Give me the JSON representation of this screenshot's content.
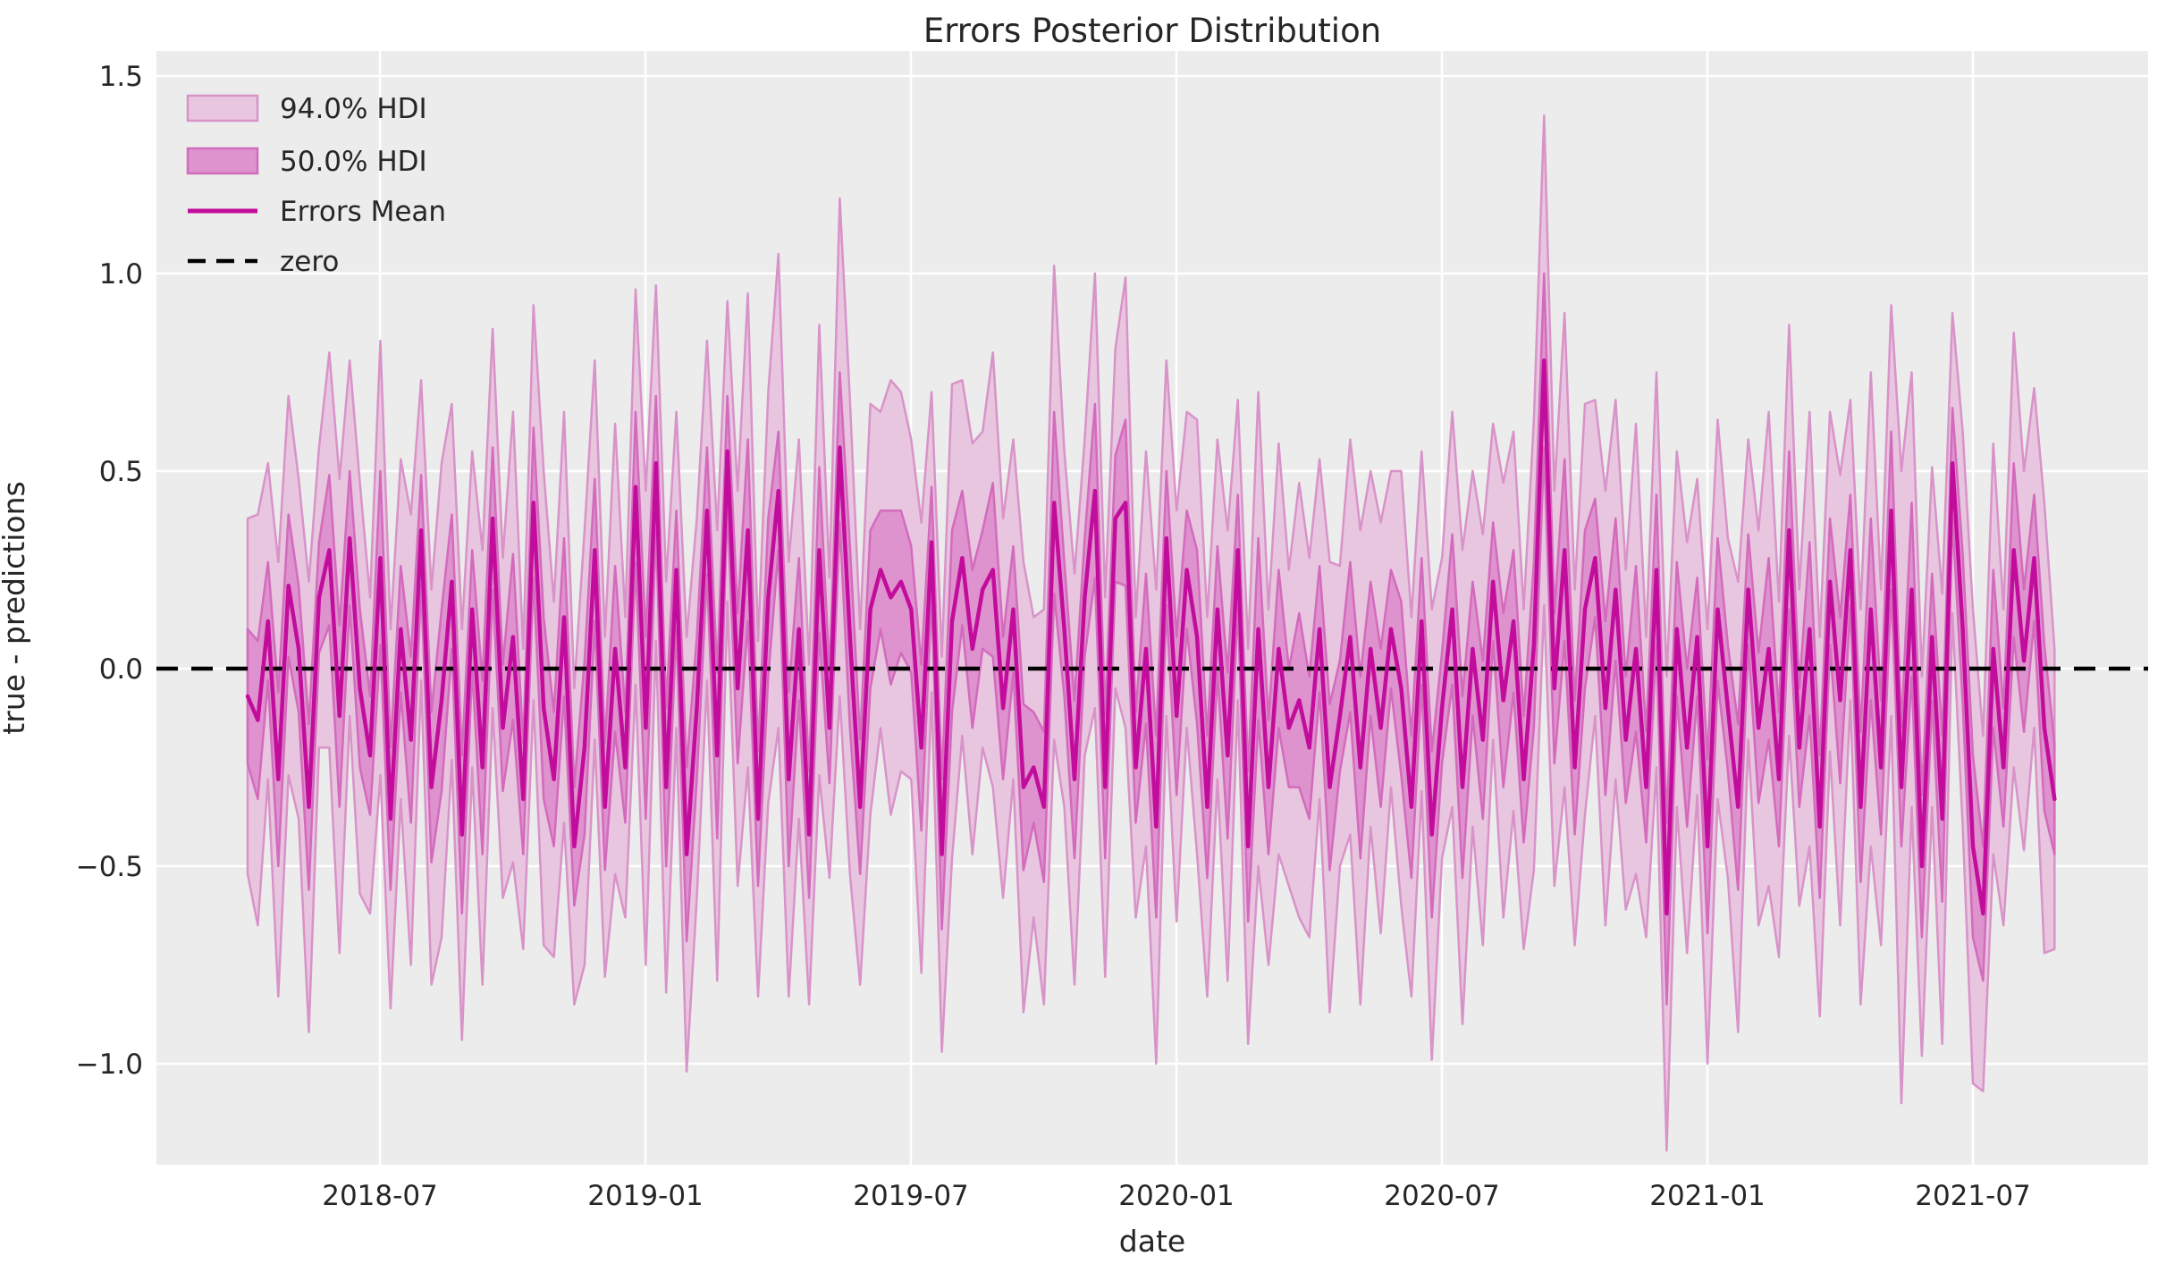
{
  "chart_data": {
    "type": "line",
    "title": "Errors Posterior Distribution",
    "xlabel": "date",
    "ylabel": "true - predictions",
    "grid": true,
    "style": {
      "axes_background": "#ececec",
      "figure_background": "#ffffff",
      "grid_color": "#ffffff",
      "text_color": "#262626",
      "hdi94_fill": "#e9c6e0",
      "hdi94_edge": "#d893c9",
      "hdi50_fill": "#de92ce",
      "hdi50_edge": "#d36bbd",
      "mean_color": "#c20d9c",
      "zero_color": "#000000"
    },
    "ylim": [
      -1.26,
      1.56
    ],
    "y_ticks": [
      {
        "label": "1.5",
        "value": 1.5
      },
      {
        "label": "1.0",
        "value": 1.0
      },
      {
        "label": "0.5",
        "value": 0.5
      },
      {
        "label": "0.0",
        "value": 0.0
      },
      {
        "label": "−0.5",
        "value": -0.5
      },
      {
        "label": "−1.0",
        "value": -1.0
      }
    ],
    "x_ticks": [
      {
        "label": "2018-07",
        "week": 13
      },
      {
        "label": "2019-01",
        "week": 39
      },
      {
        "label": "2019-07",
        "week": 65
      },
      {
        "label": "2020-01",
        "week": 91
      },
      {
        "label": "2020-07",
        "week": 117
      },
      {
        "label": "2021-01",
        "week": 143
      },
      {
        "label": "2021-07",
        "week": 169
      }
    ],
    "x_start": "2018-04-01",
    "x_step_days": 7,
    "n_points": 178,
    "legend": [
      {
        "label": "94.0% HDI",
        "swatch": "patch-light"
      },
      {
        "label": "50.0% HDI",
        "swatch": "patch-dark"
      },
      {
        "label": "Errors Mean",
        "swatch": "line"
      },
      {
        "label": "zero",
        "swatch": "dashed-line"
      }
    ],
    "series": {
      "mean": {
        "name": "Errors Mean",
        "values": [
          -0.07,
          -0.13,
          0.12,
          -0.28,
          0.21,
          0.05,
          -0.35,
          0.18,
          0.3,
          -0.12,
          0.33,
          -0.05,
          -0.22,
          0.28,
          -0.38,
          0.1,
          -0.18,
          0.35,
          -0.3,
          -0.08,
          0.22,
          -0.42,
          0.15,
          -0.25,
          0.38,
          -0.15,
          0.08,
          -0.33,
          0.42,
          -0.1,
          -0.28,
          0.13,
          -0.45,
          -0.2,
          0.3,
          -0.35,
          0.05,
          -0.25,
          0.46,
          -0.15,
          0.52,
          -0.3,
          0.25,
          -0.47,
          -0.1,
          0.4,
          -0.22,
          0.55,
          -0.05,
          0.35,
          -0.38,
          0.18,
          0.45,
          -0.28,
          0.1,
          -0.42,
          0.3,
          -0.15,
          0.56,
          0.08,
          -0.35,
          0.15,
          0.25,
          0.18,
          0.22,
          0.15,
          -0.2,
          0.32,
          -0.47,
          0.12,
          0.28,
          0.05,
          0.2,
          0.25,
          -0.1,
          0.15,
          -0.3,
          -0.25,
          -0.35,
          0.42,
          0.1,
          -0.28,
          0.18,
          0.45,
          -0.3,
          0.38,
          0.42,
          -0.25,
          0.05,
          -0.4,
          0.33,
          -0.12,
          0.25,
          0.08,
          -0.35,
          0.15,
          -0.22,
          0.3,
          -0.45,
          0.1,
          -0.3,
          0.05,
          -0.15,
          -0.08,
          -0.2,
          0.1,
          -0.3,
          -0.12,
          0.08,
          -0.25,
          0.05,
          -0.15,
          0.1,
          -0.05,
          -0.35,
          0.12,
          -0.42,
          -0.1,
          0.15,
          -0.3,
          0.05,
          -0.18,
          0.22,
          -0.08,
          0.12,
          -0.28,
          0.06,
          0.78,
          -0.05,
          0.3,
          -0.25,
          0.15,
          0.28,
          -0.1,
          0.2,
          -0.18,
          0.05,
          -0.3,
          0.25,
          -0.62,
          0.1,
          -0.2,
          0.08,
          -0.45,
          0.15,
          -0.1,
          -0.35,
          0.2,
          -0.15,
          0.05,
          -0.28,
          0.35,
          -0.2,
          0.1,
          -0.4,
          0.22,
          -0.08,
          0.3,
          -0.35,
          0.15,
          -0.25,
          0.4,
          -0.3,
          0.2,
          -0.5,
          0.08,
          -0.38,
          0.52,
          0.1,
          -0.45,
          -0.62,
          0.05,
          -0.25,
          0.3,
          0.02,
          0.28,
          -0.15,
          -0.33
        ]
      },
      "hdi50": {
        "name": "50.0% HDI",
        "halfwidth": [
          0.17,
          0.2,
          0.15,
          0.22,
          0.18,
          0.16,
          0.21,
          0.14,
          0.19,
          0.23,
          0.17,
          0.2,
          0.15,
          0.22,
          0.18,
          0.16,
          0.21,
          0.14,
          0.19,
          0.23,
          0.17,
          0.2,
          0.15,
          0.22,
          0.18,
          0.16,
          0.21,
          0.14,
          0.19,
          0.23,
          0.17,
          0.2,
          0.15,
          0.22,
          0.18,
          0.16,
          0.21,
          0.14,
          0.19,
          0.23,
          0.17,
          0.2,
          0.15,
          0.22,
          0.18,
          0.16,
          0.21,
          0.14,
          0.19,
          0.23,
          0.17,
          0.2,
          0.15,
          0.22,
          0.18,
          0.16,
          0.21,
          0.14,
          0.19,
          0.23,
          0.17,
          0.2,
          0.15,
          0.22,
          0.18,
          0.16,
          0.21,
          0.14,
          0.19,
          0.23,
          0.17,
          0.2,
          0.15,
          0.22,
          0.18,
          0.16,
          0.21,
          0.14,
          0.19,
          0.23,
          0.17,
          0.2,
          0.15,
          0.22,
          0.18,
          0.16,
          0.21,
          0.14,
          0.19,
          0.23,
          0.17,
          0.2,
          0.15,
          0.22,
          0.18,
          0.16,
          0.21,
          0.14,
          0.19,
          0.23,
          0.17,
          0.2,
          0.15,
          0.22,
          0.18,
          0.16,
          0.21,
          0.14,
          0.19,
          0.23,
          0.17,
          0.2,
          0.15,
          0.22,
          0.18,
          0.16,
          0.21,
          0.14,
          0.19,
          0.23,
          0.17,
          0.2,
          0.15,
          0.22,
          0.18,
          0.16,
          0.21,
          0.22,
          0.19,
          0.23,
          0.17,
          0.2,
          0.15,
          0.22,
          0.18,
          0.16,
          0.21,
          0.14,
          0.19,
          0.23,
          0.17,
          0.2,
          0.15,
          0.22,
          0.18,
          0.16,
          0.21,
          0.14,
          0.19,
          0.23,
          0.17,
          0.2,
          0.15,
          0.22,
          0.18,
          0.16,
          0.21,
          0.14,
          0.19,
          0.23,
          0.17,
          0.2,
          0.15,
          0.22,
          0.18,
          0.16,
          0.21,
          0.14,
          0.19,
          0.23,
          0.17,
          0.2,
          0.15,
          0.22,
          0.18,
          0.16,
          0.21,
          0.14
        ]
      },
      "hdi94": {
        "name": "94.0% HDI",
        "halfwidth": [
          0.45,
          0.52,
          0.4,
          0.55,
          0.48,
          0.43,
          0.57,
          0.38,
          0.5,
          0.6,
          0.45,
          0.52,
          0.4,
          0.55,
          0.48,
          0.43,
          0.57,
          0.38,
          0.5,
          0.6,
          0.45,
          0.52,
          0.4,
          0.55,
          0.48,
          0.43,
          0.57,
          0.38,
          0.5,
          0.6,
          0.45,
          0.52,
          0.4,
          0.55,
          0.48,
          0.43,
          0.57,
          0.38,
          0.5,
          0.6,
          0.45,
          0.52,
          0.4,
          0.55,
          0.48,
          0.43,
          0.57,
          0.38,
          0.5,
          0.6,
          0.45,
          0.52,
          0.6,
          0.55,
          0.48,
          0.43,
          0.57,
          0.38,
          0.63,
          0.6,
          0.45,
          0.52,
          0.4,
          0.55,
          0.48,
          0.43,
          0.57,
          0.38,
          0.5,
          0.6,
          0.45,
          0.52,
          0.4,
          0.55,
          0.48,
          0.43,
          0.57,
          0.38,
          0.5,
          0.6,
          0.45,
          0.52,
          0.4,
          0.55,
          0.48,
          0.43,
          0.57,
          0.38,
          0.5,
          0.6,
          0.45,
          0.52,
          0.4,
          0.55,
          0.48,
          0.43,
          0.57,
          0.38,
          0.5,
          0.6,
          0.45,
          0.52,
          0.4,
          0.55,
          0.48,
          0.43,
          0.57,
          0.38,
          0.5,
          0.6,
          0.45,
          0.52,
          0.4,
          0.55,
          0.48,
          0.43,
          0.57,
          0.38,
          0.5,
          0.6,
          0.45,
          0.52,
          0.4,
          0.55,
          0.48,
          0.43,
          0.57,
          0.62,
          0.5,
          0.6,
          0.45,
          0.52,
          0.4,
          0.55,
          0.48,
          0.43,
          0.57,
          0.38,
          0.5,
          0.6,
          0.45,
          0.52,
          0.4,
          0.55,
          0.48,
          0.43,
          0.57,
          0.38,
          0.5,
          0.6,
          0.45,
          0.52,
          0.4,
          0.55,
          0.48,
          0.43,
          0.57,
          0.38,
          0.5,
          0.6,
          0.45,
          0.52,
          0.8,
          0.55,
          0.48,
          0.43,
          0.57,
          0.38,
          0.5,
          0.6,
          0.45,
          0.52,
          0.4,
          0.55,
          0.48,
          0.43,
          0.57,
          0.38
        ]
      },
      "zero": {
        "name": "zero",
        "y": 0,
        "linestyle": "dashed"
      }
    }
  }
}
